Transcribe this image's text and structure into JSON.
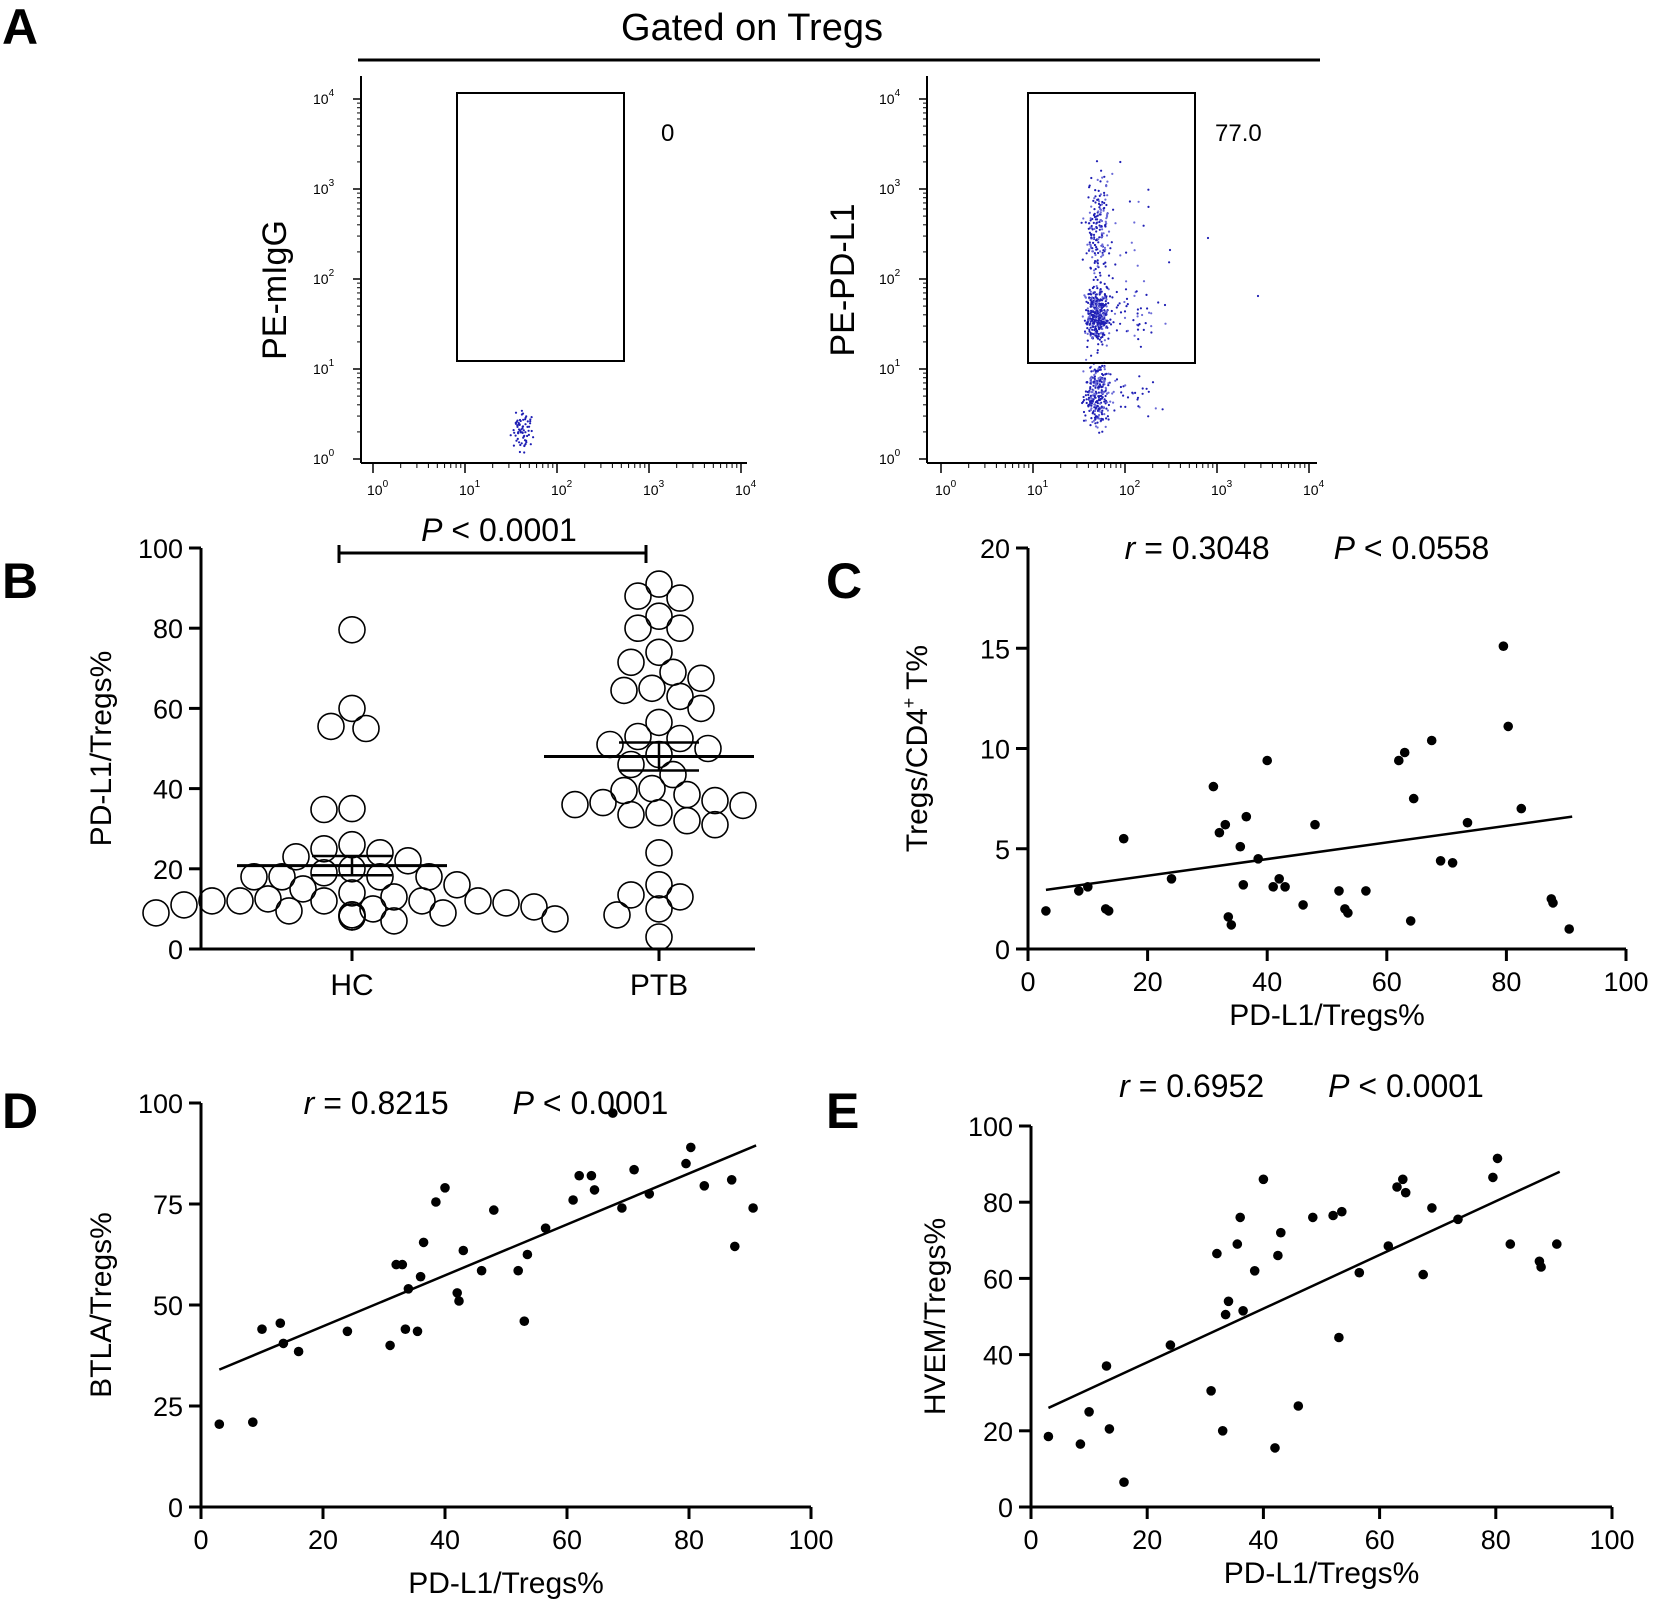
{
  "panels": {
    "A": {
      "letter": "A",
      "header": "Gated on Tregs",
      "plots": [
        {
          "ylabel": "PE-mIgG",
          "gate_value": "0"
        },
        {
          "ylabel": "PE-PD-L1",
          "gate_value": "77.0"
        }
      ],
      "decade_ticks": [
        {
          "base": "10",
          "exp": "0"
        },
        {
          "base": "10",
          "exp": "1"
        },
        {
          "base": "10",
          "exp": "2"
        },
        {
          "base": "10",
          "exp": "3"
        },
        {
          "base": "10",
          "exp": "4"
        }
      ]
    },
    "B": {
      "letter": "B"
    },
    "C": {
      "letter": "C"
    },
    "D": {
      "letter": "D"
    },
    "E": {
      "letter": "E"
    }
  },
  "colors": {
    "ink": "#000000",
    "flow_dots": "#1f1fb4",
    "flow_dots_light": "#6a6ad8"
  },
  "chart_data": [
    {
      "id": "B",
      "type": "scatter",
      "subtype": "dot-plot",
      "ylabel": "PD-L1/Tregs%",
      "ylim": [
        0,
        100
      ],
      "yticks": [
        0,
        20,
        40,
        60,
        80,
        100
      ],
      "categories": [
        "HC",
        "PTB"
      ],
      "significance": {
        "p_prefix": "P",
        "p_text": " < 0.0001"
      },
      "series": [
        {
          "name": "HC",
          "mean": 20.8,
          "sem_upper": 23.2,
          "sem_lower": 18.4,
          "values": [
            79.6,
            60,
            55.5,
            55,
            35,
            34.8,
            26,
            24,
            23,
            25,
            22,
            20,
            19,
            18,
            18,
            18,
            18,
            16,
            15,
            14,
            13,
            12.5,
            12,
            12,
            12,
            12,
            12,
            11.5,
            11,
            10.5,
            10,
            9.5,
            9,
            9,
            8.5,
            8.5,
            8,
            7.5,
            7,
            8
          ]
        },
        {
          "name": "PTB",
          "mean": 48.0,
          "sem_upper": 51.5,
          "sem_lower": 44.5,
          "values": [
            91,
            88,
            87.5,
            83,
            80,
            80,
            74,
            71.5,
            69,
            67.5,
            65,
            64.5,
            63,
            60,
            56.5,
            53,
            52.5,
            51,
            50,
            48.5,
            46,
            43.5,
            40,
            39.5,
            38.5,
            37,
            36.5,
            36,
            35.8,
            34,
            33.5,
            32,
            31,
            24,
            16,
            13.5,
            13,
            10,
            8.5,
            3
          ]
        }
      ]
    },
    {
      "id": "C",
      "type": "scatter",
      "xlabel": "PD-L1/Tregs%",
      "ylabel_main": "Tregs/CD4",
      "ylabel_sup": "+",
      "ylabel_end": " T%",
      "xlim": [
        0,
        100
      ],
      "ylim": [
        0,
        20
      ],
      "xticks": [
        0,
        20,
        40,
        60,
        80,
        100
      ],
      "yticks": [
        0,
        5,
        10,
        15,
        20
      ],
      "stat": {
        "r_label": "r",
        "r_text": " = 0.3048",
        "p_label": "P",
        "p_text": " < 0.0558"
      },
      "regression": {
        "x": [
          3,
          91
        ],
        "y": [
          2.95,
          6.6
        ]
      },
      "points": [
        [
          3,
          1.9
        ],
        [
          8.5,
          2.9
        ],
        [
          10,
          3.1
        ],
        [
          13,
          2
        ],
        [
          13.5,
          1.9
        ],
        [
          16,
          5.5
        ],
        [
          24,
          3.5
        ],
        [
          31,
          8.1
        ],
        [
          32,
          5.8
        ],
        [
          33,
          6.2
        ],
        [
          33.5,
          1.6
        ],
        [
          34,
          1.2
        ],
        [
          35.5,
          5.1
        ],
        [
          36,
          3.2
        ],
        [
          36.5,
          6.6
        ],
        [
          38.5,
          4.5
        ],
        [
          40,
          9.4
        ],
        [
          41,
          3.1
        ],
        [
          42,
          3.5
        ],
        [
          43,
          3.1
        ],
        [
          46,
          2.2
        ],
        [
          48,
          6.2
        ],
        [
          52,
          2.9
        ],
        [
          53,
          2
        ],
        [
          53.5,
          1.8
        ],
        [
          56.5,
          2.9
        ],
        [
          62,
          9.4
        ],
        [
          63,
          9.8
        ],
        [
          64,
          1.4
        ],
        [
          64.5,
          7.5
        ],
        [
          67.5,
          10.4
        ],
        [
          69,
          4.4
        ],
        [
          71,
          4.3
        ],
        [
          73.5,
          6.3
        ],
        [
          79.5,
          15.1
        ],
        [
          80.3,
          11.1
        ],
        [
          82.5,
          7
        ],
        [
          87.5,
          2.5
        ],
        [
          87.8,
          2.3
        ],
        [
          90.5,
          1.0
        ]
      ]
    },
    {
      "id": "D",
      "type": "scatter",
      "xlabel": "PD-L1/Tregs%",
      "ylabel": "BTLA/Tregs%",
      "xlim": [
        0,
        100
      ],
      "ylim": [
        0,
        100
      ],
      "xticks": [
        0,
        20,
        40,
        60,
        80,
        100
      ],
      "yticks": [
        0,
        25,
        50,
        75,
        100
      ],
      "stat": {
        "r_label": "r",
        "r_text": " = 0.8215",
        "p_label": "P",
        "p_text": " < 0.0001"
      },
      "regression": {
        "x": [
          3,
          91
        ],
        "y": [
          34,
          89.5
        ]
      },
      "points": [
        [
          3,
          20.5
        ],
        [
          8.5,
          21
        ],
        [
          10,
          44
        ],
        [
          13,
          45.5
        ],
        [
          13.5,
          40.5
        ],
        [
          16,
          38.5
        ],
        [
          24,
          43.5
        ],
        [
          31,
          40
        ],
        [
          32,
          60
        ],
        [
          33,
          60
        ],
        [
          33.5,
          44
        ],
        [
          34,
          54
        ],
        [
          35.5,
          43.5
        ],
        [
          36,
          57
        ],
        [
          36.5,
          65.5
        ],
        [
          38.5,
          75.5
        ],
        [
          40,
          79
        ],
        [
          42,
          53
        ],
        [
          42.3,
          51
        ],
        [
          43,
          63.5
        ],
        [
          46,
          58.5
        ],
        [
          48,
          73.5
        ],
        [
          52,
          58.5
        ],
        [
          53,
          46
        ],
        [
          53.5,
          62.5
        ],
        [
          56.5,
          69
        ],
        [
          61,
          76
        ],
        [
          62,
          82
        ],
        [
          64,
          82
        ],
        [
          64.5,
          78.5
        ],
        [
          67.5,
          97.5
        ],
        [
          69,
          74
        ],
        [
          71,
          83.5
        ],
        [
          73.5,
          77.5
        ],
        [
          79.5,
          85
        ],
        [
          80.3,
          89
        ],
        [
          82.5,
          79.5
        ],
        [
          87,
          81
        ],
        [
          87.5,
          64.5
        ],
        [
          90.5,
          74
        ]
      ]
    },
    {
      "id": "E",
      "type": "scatter",
      "xlabel": "PD-L1/Tregs%",
      "ylabel": "HVEM/Tregs%",
      "xlim": [
        0,
        100
      ],
      "ylim": [
        0,
        100
      ],
      "xticks": [
        0,
        20,
        40,
        60,
        80,
        100
      ],
      "yticks": [
        0,
        20,
        40,
        60,
        80,
        100
      ],
      "stat": {
        "r_label": "r",
        "r_text": " = 0.6952",
        "p_label": "P",
        "p_text": " < 0.0001"
      },
      "regression": {
        "x": [
          3,
          91
        ],
        "y": [
          26,
          88
        ]
      },
      "points": [
        [
          3,
          18.5
        ],
        [
          8.5,
          16.5
        ],
        [
          10,
          25
        ],
        [
          13,
          37
        ],
        [
          13.5,
          20.5
        ],
        [
          16,
          6.5
        ],
        [
          24,
          42.5
        ],
        [
          31,
          30.5
        ],
        [
          32,
          66.5
        ],
        [
          33,
          20
        ],
        [
          33.5,
          50.5
        ],
        [
          34,
          54
        ],
        [
          35.5,
          69
        ],
        [
          36,
          76
        ],
        [
          36.5,
          51.5
        ],
        [
          38.5,
          62
        ],
        [
          40,
          86
        ],
        [
          42,
          15.5
        ],
        [
          42.5,
          66
        ],
        [
          43,
          72
        ],
        [
          46,
          26.5
        ],
        [
          48.5,
          76
        ],
        [
          52,
          76.5
        ],
        [
          53,
          44.5
        ],
        [
          53.5,
          77.5
        ],
        [
          56.5,
          61.5
        ],
        [
          61.5,
          68.5
        ],
        [
          63,
          84
        ],
        [
          64,
          86
        ],
        [
          64.5,
          82.5
        ],
        [
          67.5,
          61
        ],
        [
          69,
          78.5
        ],
        [
          73.5,
          75.5
        ],
        [
          79.5,
          86.5
        ],
        [
          80.3,
          91.5
        ],
        [
          82.5,
          69
        ],
        [
          87.5,
          64.5
        ],
        [
          87.8,
          63
        ],
        [
          90.5,
          69
        ]
      ]
    }
  ]
}
